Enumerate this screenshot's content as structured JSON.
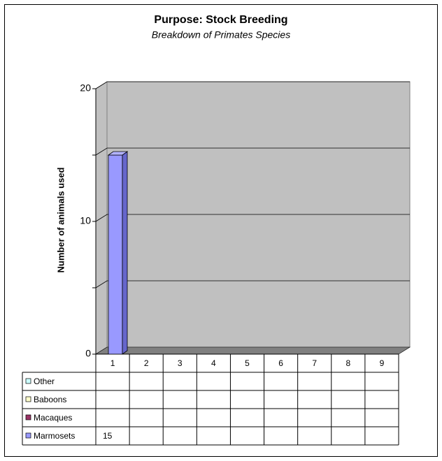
{
  "chart_data": {
    "type": "bar3d",
    "title": "Purpose: Stock Breeding",
    "subtitle": "Breakdown of Primates Species",
    "y_label": "Number of animals used",
    "categories": [
      "1",
      "2",
      "3",
      "4",
      "5",
      "6",
      "7",
      "8",
      "9"
    ],
    "series": [
      {
        "name": "Other",
        "color": "#ccffff",
        "values": [
          null,
          null,
          null,
          null,
          null,
          null,
          null,
          null,
          null
        ]
      },
      {
        "name": "Baboons",
        "color": "#ffffcc",
        "values": [
          null,
          null,
          null,
          null,
          null,
          null,
          null,
          null,
          null
        ]
      },
      {
        "name": "Macaques",
        "color": "#993366",
        "values": [
          null,
          null,
          null,
          null,
          null,
          null,
          null,
          null,
          null
        ]
      },
      {
        "name": "Marmosets",
        "color": "#9999ff",
        "values": [
          15,
          null,
          null,
          null,
          null,
          null,
          null,
          null,
          null
        ]
      }
    ],
    "ylim": [
      0,
      20
    ],
    "yticks": [
      0,
      10,
      20
    ],
    "minor_yticks": [
      5,
      15
    ],
    "grid": true,
    "wall_color": "#c0c0c0",
    "floor_color": "#808080"
  }
}
